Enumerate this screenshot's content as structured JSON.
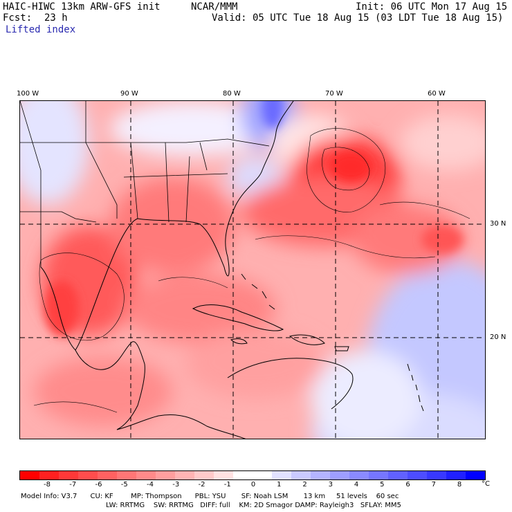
{
  "header": {
    "model": "HAIC-HIWC 13km ARW-GFS init",
    "org": "NCAR/MMM",
    "init": "Init: 06 UTC Mon 17 Aug 15",
    "fcst_label": "Fcst:",
    "fcst_value": "23 h",
    "valid": "Valid: 05 UTC Tue 18 Aug 15 (03 LDT Tue 18 Aug 15)",
    "field": "Lifted index"
  },
  "map": {
    "lon_labels": [
      "100 W",
      "90 W",
      "80 W",
      "70 W",
      "60 W"
    ],
    "lat_labels": [
      "30 N",
      "20 N"
    ]
  },
  "colorbar": {
    "ticks": [
      "-8",
      "-7",
      "-6",
      "-5",
      "-4",
      "-3",
      "-2",
      "-1",
      "0",
      "1",
      "2",
      "3",
      "4",
      "5",
      "6",
      "7",
      "8"
    ],
    "unit": "°C",
    "colors": [
      "#ff0000",
      "#ff2020",
      "#ff3838",
      "#ff4d4d",
      "#ff6161",
      "#ff7676",
      "#ff8a8a",
      "#ff9e9e",
      "#ffb4b4",
      "#ffcaca",
      "#ffe2e2",
      "#ffffff",
      "#ffffff",
      "#e2e2ff",
      "#cacaff",
      "#b4b4ff",
      "#9e9eff",
      "#8a8aff",
      "#7676ff",
      "#6161ff",
      "#4d4dff",
      "#3838ff",
      "#2020ff",
      "#0000ff"
    ]
  },
  "footer": {
    "line1": "Model Info: V3.7      CU: KF        MP: Thompson      PBL: YSU       SF: Noah LSM       13 km     51 levels    60 sec",
    "line2": "LW: RRTMG    SW: RRTMG   DIFF: full    KM: 2D Smagor DAMP: Rayleigh3   SFLAY: MM5"
  }
}
